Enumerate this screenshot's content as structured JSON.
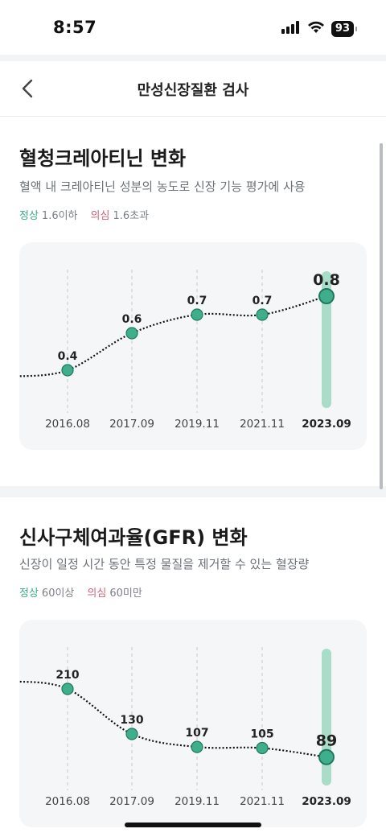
{
  "status_bar": {
    "time": "8:57",
    "battery": "93"
  },
  "nav": {
    "title": "만성신장질환 검사"
  },
  "sections": [
    {
      "title": "혈청크레아티닌 변화",
      "description": "혈액 내 크레아티닌 성분의 농도로 신장 기능 평가에 사용",
      "normal_label": "정상",
      "normal_value": "1.6이하",
      "suspect_label": "의심",
      "suspect_value": "1.6초과"
    },
    {
      "title": "신사구체여과율(GFR) 변화",
      "description": "신장이 일정 시간 동안 특정 물질을 제거할 수 있는 혈장량",
      "normal_label": "정상",
      "normal_value": "60이상",
      "suspect_label": "의심",
      "suspect_value": "60미만"
    }
  ],
  "chart_data": [
    {
      "type": "line",
      "categories": [
        "2016.08",
        "2017.09",
        "2019.11",
        "2021.11",
        "2023.09"
      ],
      "values": [
        0.4,
        0.6,
        0.7,
        0.7,
        0.8
      ],
      "labels": [
        "0.4",
        "0.6",
        "0.7",
        "0.7",
        "0.8"
      ],
      "ylim": [
        0.2,
        0.9
      ],
      "highlight_index": 4,
      "colors": {
        "point": "#3fae8c",
        "point_stroke": "#1f7a5c",
        "highlight_bar": "#a9dcc9",
        "line": "#111111"
      }
    },
    {
      "type": "line",
      "categories": [
        "2016.08",
        "2017.09",
        "2019.11",
        "2021.11",
        "2023.09"
      ],
      "values": [
        210,
        130,
        107,
        105,
        89
      ],
      "labels": [
        "210",
        "130",
        "107",
        "105",
        "89"
      ],
      "ylim": [
        40,
        270
      ],
      "highlight_index": 4,
      "colors": {
        "point": "#3fae8c",
        "point_stroke": "#1f7a5c",
        "highlight_bar": "#a9dcc9",
        "line": "#111111"
      }
    }
  ]
}
